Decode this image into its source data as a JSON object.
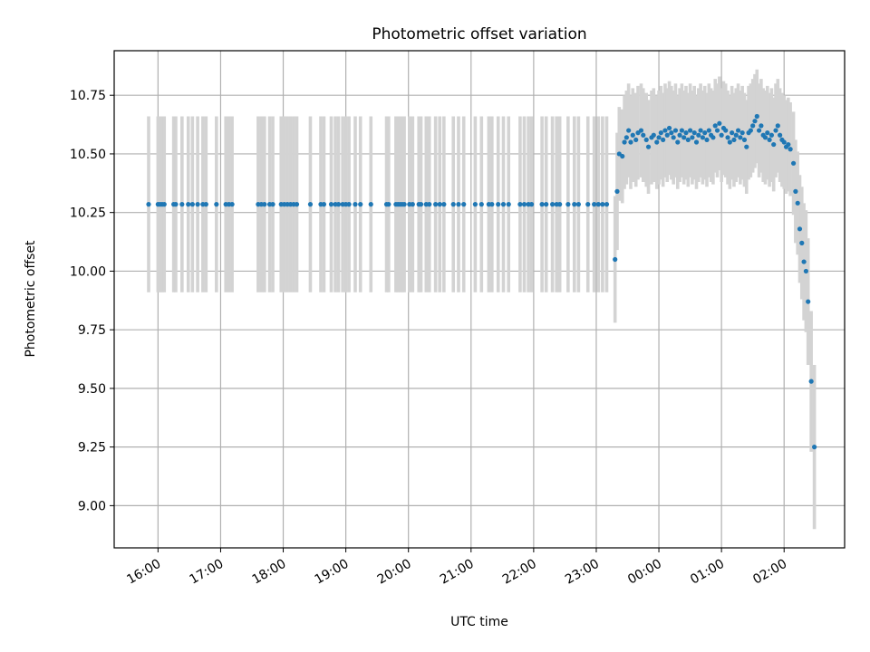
{
  "chart_data": {
    "type": "scatter",
    "title": "Photometric offset variation",
    "xlabel": "UTC time",
    "ylabel": "Photometric offset",
    "xlim": [
      "15:18",
      "02:58"
    ],
    "ylim": [
      8.82,
      10.94
    ],
    "grid": true,
    "legend": "none",
    "x_ticks": [
      "16:00",
      "17:00",
      "18:00",
      "19:00",
      "20:00",
      "21:00",
      "22:00",
      "23:00",
      "00:00",
      "01:00",
      "02:00"
    ],
    "y_ticks": [
      "9.00",
      "9.25",
      "9.50",
      "9.75",
      "10.00",
      "10.25",
      "10.50",
      "10.75"
    ],
    "colors": {
      "points": "#1f77b4",
      "errorbars": "#d3d3d3",
      "grid": "#b0b0b0"
    },
    "series": [
      {
        "points": [
          {
            "x": "15:51",
            "y": 10.285,
            "err": 0.375
          },
          {
            "x": "16:00",
            "y": 10.285,
            "err": 0.375
          },
          {
            "x": "16:02",
            "y": 10.285,
            "err": 0.375
          },
          {
            "x": "16:04",
            "y": 10.285,
            "err": 0.375
          },
          {
            "x": "16:06",
            "y": 10.285,
            "err": 0.375
          },
          {
            "x": "16:15",
            "y": 10.285,
            "err": 0.375
          },
          {
            "x": "16:17",
            "y": 10.285,
            "err": 0.375
          },
          {
            "x": "16:23",
            "y": 10.285,
            "err": 0.375
          },
          {
            "x": "16:29",
            "y": 10.285,
            "err": 0.375
          },
          {
            "x": "16:33",
            "y": 10.285,
            "err": 0.375
          },
          {
            "x": "16:38",
            "y": 10.285,
            "err": 0.375
          },
          {
            "x": "16:43",
            "y": 10.285,
            "err": 0.375
          },
          {
            "x": "16:46",
            "y": 10.285,
            "err": 0.375
          },
          {
            "x": "16:56",
            "y": 10.285,
            "err": 0.375
          },
          {
            "x": "17:05",
            "y": 10.285,
            "err": 0.375
          },
          {
            "x": "17:08",
            "y": 10.285,
            "err": 0.375
          },
          {
            "x": "17:11",
            "y": 10.285,
            "err": 0.375
          },
          {
            "x": "17:36",
            "y": 10.285,
            "err": 0.375
          },
          {
            "x": "17:39",
            "y": 10.285,
            "err": 0.375
          },
          {
            "x": "17:42",
            "y": 10.285,
            "err": 0.375
          },
          {
            "x": "17:47",
            "y": 10.285,
            "err": 0.375
          },
          {
            "x": "17:50",
            "y": 10.285,
            "err": 0.375
          },
          {
            "x": "17:58",
            "y": 10.285,
            "err": 0.375
          },
          {
            "x": "18:01",
            "y": 10.285,
            "err": 0.375
          },
          {
            "x": "18:04",
            "y": 10.285,
            "err": 0.375
          },
          {
            "x": "18:07",
            "y": 10.285,
            "err": 0.375
          },
          {
            "x": "18:10",
            "y": 10.285,
            "err": 0.375
          },
          {
            "x": "18:13",
            "y": 10.285,
            "err": 0.375
          },
          {
            "x": "18:26",
            "y": 10.285,
            "err": 0.375
          },
          {
            "x": "18:36",
            "y": 10.285,
            "err": 0.375
          },
          {
            "x": "18:39",
            "y": 10.285,
            "err": 0.375
          },
          {
            "x": "18:46",
            "y": 10.285,
            "err": 0.375
          },
          {
            "x": "18:50",
            "y": 10.285,
            "err": 0.375
          },
          {
            "x": "18:53",
            "y": 10.285,
            "err": 0.375
          },
          {
            "x": "18:57",
            "y": 10.285,
            "err": 0.375
          },
          {
            "x": "19:00",
            "y": 10.285,
            "err": 0.375
          },
          {
            "x": "19:03",
            "y": 10.285,
            "err": 0.375
          },
          {
            "x": "19:09",
            "y": 10.285,
            "err": 0.375
          },
          {
            "x": "19:14",
            "y": 10.285,
            "err": 0.375
          },
          {
            "x": "19:24",
            "y": 10.285,
            "err": 0.375
          },
          {
            "x": "19:39",
            "y": 10.285,
            "err": 0.375
          },
          {
            "x": "19:41",
            "y": 10.285,
            "err": 0.375
          },
          {
            "x": "19:48",
            "y": 10.285,
            "err": 0.375
          },
          {
            "x": "19:50",
            "y": 10.285,
            "err": 0.375
          },
          {
            "x": "19:52",
            "y": 10.285,
            "err": 0.375
          },
          {
            "x": "19:54",
            "y": 10.285,
            "err": 0.375
          },
          {
            "x": "19:56",
            "y": 10.285,
            "err": 0.375
          },
          {
            "x": "20:01",
            "y": 10.285,
            "err": 0.375
          },
          {
            "x": "20:04",
            "y": 10.285,
            "err": 0.375
          },
          {
            "x": "20:10",
            "y": 10.285,
            "err": 0.375
          },
          {
            "x": "20:12",
            "y": 10.285,
            "err": 0.375
          },
          {
            "x": "20:17",
            "y": 10.285,
            "err": 0.375
          },
          {
            "x": "20:20",
            "y": 10.285,
            "err": 0.375
          },
          {
            "x": "20:26",
            "y": 10.285,
            "err": 0.375
          },
          {
            "x": "20:30",
            "y": 10.285,
            "err": 0.375
          },
          {
            "x": "20:34",
            "y": 10.285,
            "err": 0.375
          },
          {
            "x": "20:43",
            "y": 10.285,
            "err": 0.375
          },
          {
            "x": "20:48",
            "y": 10.285,
            "err": 0.375
          },
          {
            "x": "20:53",
            "y": 10.285,
            "err": 0.375
          },
          {
            "x": "21:04",
            "y": 10.285,
            "err": 0.375
          },
          {
            "x": "21:10",
            "y": 10.285,
            "err": 0.375
          },
          {
            "x": "21:17",
            "y": 10.285,
            "err": 0.375
          },
          {
            "x": "21:20",
            "y": 10.285,
            "err": 0.375
          },
          {
            "x": "21:26",
            "y": 10.285,
            "err": 0.375
          },
          {
            "x": "21:31",
            "y": 10.285,
            "err": 0.375
          },
          {
            "x": "21:36",
            "y": 10.285,
            "err": 0.375
          },
          {
            "x": "21:47",
            "y": 10.285,
            "err": 0.375
          },
          {
            "x": "21:51",
            "y": 10.285,
            "err": 0.375
          },
          {
            "x": "21:55",
            "y": 10.285,
            "err": 0.375
          },
          {
            "x": "21:58",
            "y": 10.285,
            "err": 0.375
          },
          {
            "x": "22:08",
            "y": 10.285,
            "err": 0.375
          },
          {
            "x": "22:12",
            "y": 10.285,
            "err": 0.375
          },
          {
            "x": "22:18",
            "y": 10.285,
            "err": 0.375
          },
          {
            "x": "22:22",
            "y": 10.285,
            "err": 0.375
          },
          {
            "x": "22:25",
            "y": 10.285,
            "err": 0.375
          },
          {
            "x": "22:33",
            "y": 10.285,
            "err": 0.375
          },
          {
            "x": "22:39",
            "y": 10.285,
            "err": 0.375
          },
          {
            "x": "22:43",
            "y": 10.285,
            "err": 0.375
          },
          {
            "x": "22:52",
            "y": 10.285,
            "err": 0.375
          },
          {
            "x": "22:58",
            "y": 10.285,
            "err": 0.375
          },
          {
            "x": "23:02",
            "y": 10.285,
            "err": 0.375
          },
          {
            "x": "23:06",
            "y": 10.285,
            "err": 0.375
          },
          {
            "x": "23:10",
            "y": 10.285,
            "err": 0.375
          },
          {
            "x": "23:18",
            "y": 10.05,
            "err": 0.27
          },
          {
            "x": "23:20",
            "y": 10.34,
            "err": 0.25
          },
          {
            "x": "23:22",
            "y": 10.5,
            "err": 0.2
          },
          {
            "x": "23:25",
            "y": 10.49,
            "err": 0.2
          },
          {
            "x": "23:27",
            "y": 10.55,
            "err": 0.2
          },
          {
            "x": "23:29",
            "y": 10.57,
            "err": 0.2
          },
          {
            "x": "23:31",
            "y": 10.6,
            "err": 0.2
          },
          {
            "x": "23:33",
            "y": 10.55,
            "err": 0.2
          },
          {
            "x": "23:35",
            "y": 10.58,
            "err": 0.2
          },
          {
            "x": "23:38",
            "y": 10.56,
            "err": 0.2
          },
          {
            "x": "23:40",
            "y": 10.59,
            "err": 0.2
          },
          {
            "x": "23:43",
            "y": 10.6,
            "err": 0.2
          },
          {
            "x": "23:45",
            "y": 10.58,
            "err": 0.2
          },
          {
            "x": "23:48",
            "y": 10.56,
            "err": 0.2
          },
          {
            "x": "23:50",
            "y": 10.53,
            "err": 0.2
          },
          {
            "x": "23:53",
            "y": 10.57,
            "err": 0.2
          },
          {
            "x": "23:55",
            "y": 10.58,
            "err": 0.2
          },
          {
            "x": "23:58",
            "y": 10.55,
            "err": 0.2
          },
          {
            "x": "00:00",
            "y": 10.57,
            "err": 0.2
          },
          {
            "x": "00:02",
            "y": 10.59,
            "err": 0.2
          },
          {
            "x": "00:04",
            "y": 10.56,
            "err": 0.2
          },
          {
            "x": "00:06",
            "y": 10.6,
            "err": 0.2
          },
          {
            "x": "00:08",
            "y": 10.58,
            "err": 0.2
          },
          {
            "x": "00:10",
            "y": 10.61,
            "err": 0.2
          },
          {
            "x": "00:12",
            "y": 10.59,
            "err": 0.2
          },
          {
            "x": "00:14",
            "y": 10.57,
            "err": 0.2
          },
          {
            "x": "00:16",
            "y": 10.6,
            "err": 0.2
          },
          {
            "x": "00:18",
            "y": 10.55,
            "err": 0.2
          },
          {
            "x": "00:20",
            "y": 10.58,
            "err": 0.2
          },
          {
            "x": "00:22",
            "y": 10.6,
            "err": 0.2
          },
          {
            "x": "00:24",
            "y": 10.57,
            "err": 0.2
          },
          {
            "x": "00:26",
            "y": 10.59,
            "err": 0.2
          },
          {
            "x": "00:28",
            "y": 10.56,
            "err": 0.2
          },
          {
            "x": "00:30",
            "y": 10.6,
            "err": 0.2
          },
          {
            "x": "00:32",
            "y": 10.57,
            "err": 0.2
          },
          {
            "x": "00:34",
            "y": 10.59,
            "err": 0.2
          },
          {
            "x": "00:36",
            "y": 10.55,
            "err": 0.2
          },
          {
            "x": "00:38",
            "y": 10.58,
            "err": 0.2
          },
          {
            "x": "00:40",
            "y": 10.6,
            "err": 0.2
          },
          {
            "x": "00:42",
            "y": 10.57,
            "err": 0.2
          },
          {
            "x": "00:44",
            "y": 10.59,
            "err": 0.2
          },
          {
            "x": "00:46",
            "y": 10.56,
            "err": 0.2
          },
          {
            "x": "00:48",
            "y": 10.6,
            "err": 0.2
          },
          {
            "x": "00:50",
            "y": 10.58,
            "err": 0.2
          },
          {
            "x": "00:52",
            "y": 10.57,
            "err": 0.2
          },
          {
            "x": "00:54",
            "y": 10.62,
            "err": 0.2
          },
          {
            "x": "00:56",
            "y": 10.6,
            "err": 0.2
          },
          {
            "x": "00:58",
            "y": 10.63,
            "err": 0.2
          },
          {
            "x": "01:00",
            "y": 10.58,
            "err": 0.2
          },
          {
            "x": "01:02",
            "y": 10.61,
            "err": 0.2
          },
          {
            "x": "01:04",
            "y": 10.6,
            "err": 0.2
          },
          {
            "x": "01:06",
            "y": 10.57,
            "err": 0.2
          },
          {
            "x": "01:08",
            "y": 10.55,
            "err": 0.2
          },
          {
            "x": "01:10",
            "y": 10.59,
            "err": 0.2
          },
          {
            "x": "01:12",
            "y": 10.56,
            "err": 0.2
          },
          {
            "x": "01:14",
            "y": 10.58,
            "err": 0.2
          },
          {
            "x": "01:16",
            "y": 10.6,
            "err": 0.2
          },
          {
            "x": "01:18",
            "y": 10.57,
            "err": 0.2
          },
          {
            "x": "01:20",
            "y": 10.59,
            "err": 0.2
          },
          {
            "x": "01:22",
            "y": 10.56,
            "err": 0.2
          },
          {
            "x": "01:24",
            "y": 10.53,
            "err": 0.2
          },
          {
            "x": "01:26",
            "y": 10.59,
            "err": 0.2
          },
          {
            "x": "01:28",
            "y": 10.6,
            "err": 0.2
          },
          {
            "x": "01:30",
            "y": 10.62,
            "err": 0.2
          },
          {
            "x": "01:32",
            "y": 10.64,
            "err": 0.2
          },
          {
            "x": "01:34",
            "y": 10.66,
            "err": 0.2
          },
          {
            "x": "01:36",
            "y": 10.6,
            "err": 0.2
          },
          {
            "x": "01:38",
            "y": 10.62,
            "err": 0.2
          },
          {
            "x": "01:40",
            "y": 10.58,
            "err": 0.2
          },
          {
            "x": "01:42",
            "y": 10.57,
            "err": 0.2
          },
          {
            "x": "01:44",
            "y": 10.59,
            "err": 0.2
          },
          {
            "x": "01:46",
            "y": 10.56,
            "err": 0.2
          },
          {
            "x": "01:48",
            "y": 10.58,
            "err": 0.2
          },
          {
            "x": "01:50",
            "y": 10.54,
            "err": 0.2
          },
          {
            "x": "01:52",
            "y": 10.6,
            "err": 0.2
          },
          {
            "x": "01:54",
            "y": 10.62,
            "err": 0.2
          },
          {
            "x": "01:56",
            "y": 10.58,
            "err": 0.2
          },
          {
            "x": "01:58",
            "y": 10.56,
            "err": 0.2
          },
          {
            "x": "02:00",
            "y": 10.55,
            "err": 0.2
          },
          {
            "x": "02:02",
            "y": 10.53,
            "err": 0.2
          },
          {
            "x": "02:04",
            "y": 10.54,
            "err": 0.2
          },
          {
            "x": "02:06",
            "y": 10.52,
            "err": 0.2
          },
          {
            "x": "02:09",
            "y": 10.46,
            "err": 0.22
          },
          {
            "x": "02:11",
            "y": 10.34,
            "err": 0.22
          },
          {
            "x": "02:13",
            "y": 10.29,
            "err": 0.22
          },
          {
            "x": "02:15",
            "y": 10.18,
            "err": 0.23
          },
          {
            "x": "02:17",
            "y": 10.12,
            "err": 0.24
          },
          {
            "x": "02:19",
            "y": 10.04,
            "err": 0.25
          },
          {
            "x": "02:21",
            "y": 10.0,
            "err": 0.26
          },
          {
            "x": "02:23",
            "y": 9.87,
            "err": 0.27
          },
          {
            "x": "02:26",
            "y": 9.53,
            "err": 0.3
          },
          {
            "x": "02:29",
            "y": 9.25,
            "err": 0.35
          }
        ]
      }
    ]
  }
}
